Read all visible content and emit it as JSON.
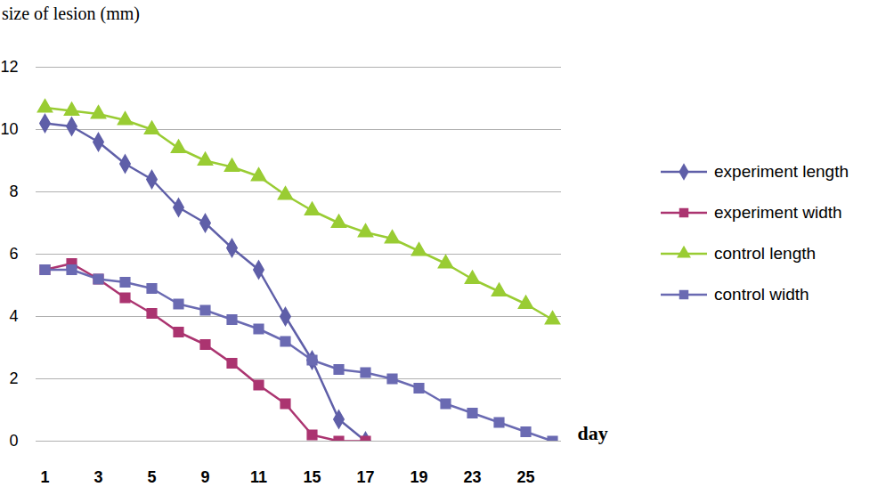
{
  "chart_data": {
    "type": "line",
    "y_label": "size of lesion (mm)",
    "x_label": "day",
    "categories": [
      "1",
      null,
      "3",
      null,
      "5",
      null,
      "9",
      null,
      "11",
      null,
      "15",
      null,
      "17",
      null,
      "19",
      null,
      "23",
      null,
      "25",
      null
    ],
    "ylim": [
      0,
      12
    ],
    "yticks": [
      0,
      2,
      4,
      6,
      8,
      10,
      12
    ],
    "grid": true,
    "legend": "right",
    "series": [
      {
        "name": "experiment length",
        "color": "#5f5fa8",
        "marker": "diamond",
        "values": [
          10.2,
          10.1,
          9.6,
          8.9,
          8.4,
          7.5,
          7.0,
          6.2,
          5.5,
          4.0,
          2.6,
          0.7,
          0,
          null,
          null,
          null,
          null,
          null,
          null,
          null
        ]
      },
      {
        "name": "experiment width",
        "color": "#ab3470",
        "marker": "square",
        "values": [
          5.5,
          5.7,
          5.2,
          4.6,
          4.1,
          3.5,
          3.1,
          2.5,
          1.8,
          1.2,
          0.2,
          0,
          0,
          null,
          null,
          null,
          null,
          null,
          null,
          null
        ]
      },
      {
        "name": "control length",
        "color": "#99cc33",
        "marker": "triangle",
        "values": [
          10.7,
          10.6,
          10.5,
          10.3,
          10.0,
          9.4,
          9.0,
          8.8,
          8.5,
          7.9,
          7.4,
          7.0,
          6.7,
          6.5,
          6.1,
          5.7,
          5.2,
          4.8,
          4.4,
          3.9
        ]
      },
      {
        "name": "control width",
        "color": "#6a6ab2",
        "marker": "square",
        "values": [
          5.5,
          5.5,
          5.2,
          5.1,
          4.9,
          4.4,
          4.2,
          3.9,
          3.6,
          3.2,
          2.6,
          2.3,
          2.2,
          2.0,
          1.7,
          1.2,
          0.9,
          0.6,
          0.3,
          0.0
        ]
      }
    ]
  }
}
